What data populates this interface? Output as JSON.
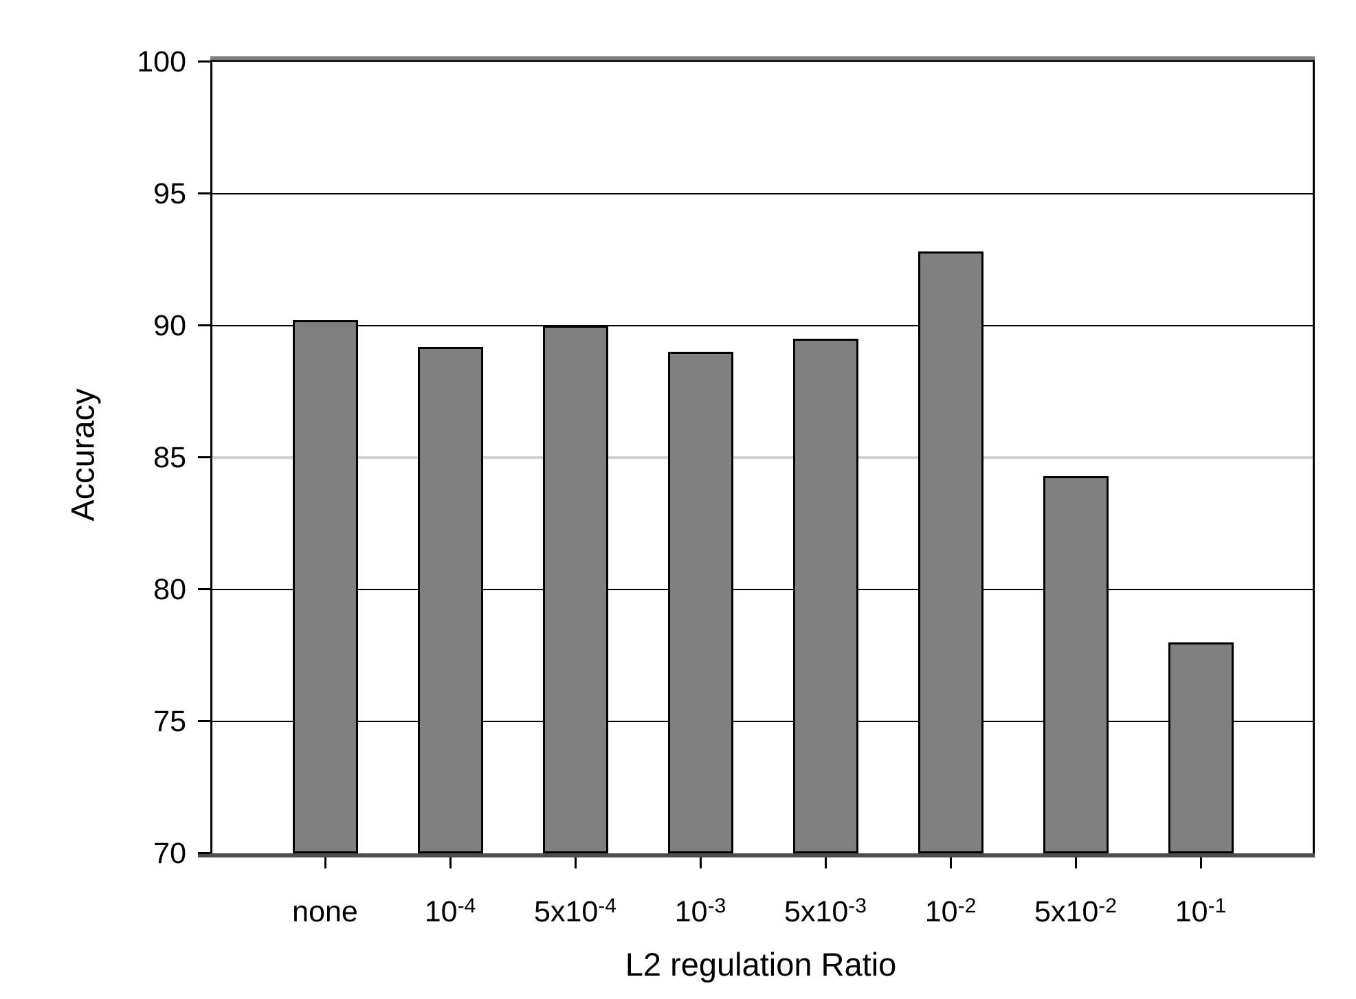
{
  "chart_data": {
    "type": "bar",
    "title": "",
    "xlabel": "L2 regulation Ratio",
    "ylabel": "Accuracy",
    "categories": [
      "none",
      "10^-4",
      "5x10^-4",
      "10^-3",
      "5x10^-3",
      "10^-2",
      "5x10^-2",
      "10^-1"
    ],
    "values": [
      90.2,
      89.2,
      90.0,
      89.0,
      89.5,
      92.8,
      84.3,
      78.0
    ],
    "ylim": [
      70,
      100
    ],
    "yticks": [
      70,
      75,
      80,
      85,
      90,
      95,
      100
    ],
    "grid": "horizontal",
    "legend": "none",
    "colors": {
      "bar_fill": "#808080",
      "bar_border": "#000000",
      "gridline": "#000000",
      "light_gridline": "#d2d2d2",
      "light_gridline_value": 85,
      "bottom_axis": "#4d4d4d",
      "frame_shadow": "#808080",
      "background": "#ffffff"
    }
  }
}
